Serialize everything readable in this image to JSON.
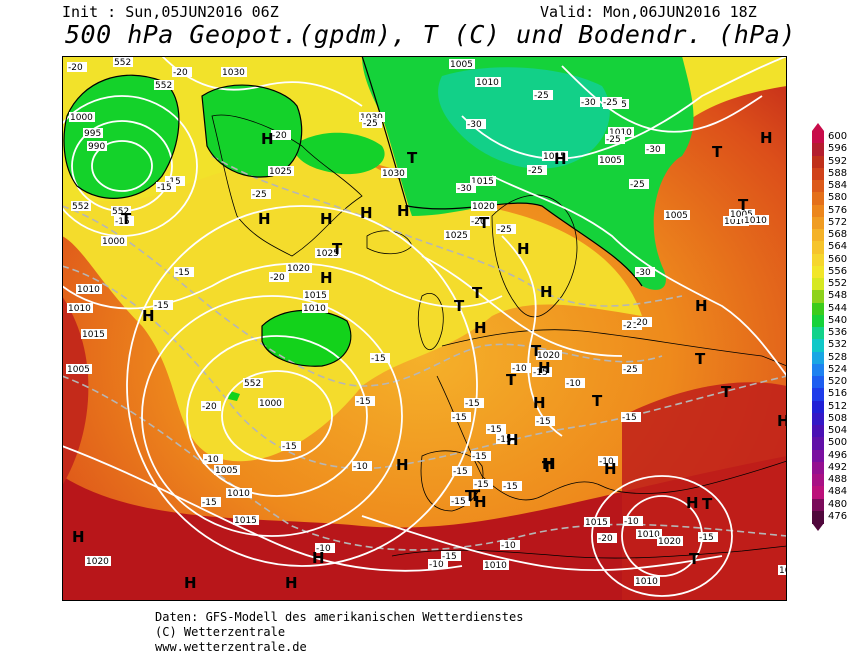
{
  "header": {
    "init": "Init : Sun,05JUN2016 06Z",
    "valid": "Valid: Mon,06JUN2016 18Z",
    "title": "500 hPa Geopot.(gpdm), T (C) und Bodendr. (hPa)"
  },
  "colors": {
    "low_green": "#13d21b",
    "mid_yellow": "#f5e82a",
    "orange": "#ef8a1c",
    "deep_red": "#b40c14",
    "isobar": "#ffffff",
    "isotherm": "#b6b6b6"
  },
  "colorbar": {
    "labels": [
      "600",
      "596",
      "592",
      "588",
      "584",
      "580",
      "576",
      "572",
      "568",
      "564",
      "560",
      "556",
      "552",
      "548",
      "544",
      "540",
      "536",
      "532",
      "528",
      "524",
      "520",
      "516",
      "512",
      "508",
      "504",
      "500",
      "496",
      "492",
      "488",
      "484",
      "480",
      "476"
    ],
    "colors": [
      "#c80c4a",
      "#b41e2e",
      "#c0301a",
      "#d0421a",
      "#dc5a1a",
      "#e4701a",
      "#ec861c",
      "#f09c22",
      "#f4b228",
      "#f6c42c",
      "#f6d62e",
      "#f2e62a",
      "#d6e822",
      "#8ed21c",
      "#3ccc1c",
      "#16d23a",
      "#12d28a",
      "#10c8c8",
      "#1aa6e4",
      "#1e82f0",
      "#1e5ef0",
      "#1e3cea",
      "#2020d6",
      "#3418c6",
      "#4a10b4",
      "#6010a8",
      "#7a10a0",
      "#941090",
      "#a81084",
      "#bc107a",
      "#7a0a5a",
      "#50083c"
    ]
  },
  "map": {
    "pressure_labels": [
      "552",
      "552",
      "1030",
      "1000",
      "995",
      "990",
      "552",
      "1030",
      "1025",
      "1005",
      "1010",
      "1005",
      "1010",
      "1015",
      "1015",
      "1020",
      "1025",
      "1025",
      "1020",
      "1015",
      "1010",
      "1005",
      "1010",
      "1005",
      "1000",
      "1010",
      "1015",
      "552",
      "1000",
      "1005",
      "1010",
      "1015",
      "1020",
      "1020",
      "1015",
      "1010",
      "1010",
      "1015",
      "1010",
      "1020",
      "1010",
      "1010",
      "1010",
      "1005",
      "1010",
      "1005",
      "552",
      "1030"
    ],
    "temperature_labels": [
      "-20",
      "-20",
      "-15",
      "-15",
      "-15",
      "-25",
      "-20",
      "-25",
      "-30",
      "-25",
      "-30",
      "-25",
      "-30",
      "-25",
      "-30",
      "-25",
      "-25",
      "-20",
      "-25",
      "-30",
      "-15",
      "-15",
      "-20",
      "-15",
      "-20",
      "-25",
      "-20",
      "-20",
      "-15",
      "-15",
      "-15",
      "-15",
      "-15",
      "-15",
      "-15",
      "-15",
      "-15",
      "-15",
      "-15",
      "-15",
      "-10",
      "-10",
      "-15",
      "-15",
      "-10",
      "-10",
      "-10",
      "-10",
      "-10",
      "-10",
      "-10",
      "-15",
      "-20",
      "-15",
      "-15"
    ],
    "pressure_systems": [
      "H",
      "T",
      "H",
      "H",
      "H",
      "H",
      "T",
      "T",
      "H",
      "H",
      "H",
      "T",
      "T",
      "H",
      "T",
      "H",
      "T",
      "H",
      "H",
      "H",
      "T",
      "T",
      "T",
      "T",
      "T",
      "H",
      "T",
      "H",
      "H",
      "H",
      "T",
      "H",
      "T",
      "H",
      "H",
      "H",
      "T",
      "H",
      "H",
      "H",
      "H",
      "T",
      "H",
      "T",
      "H"
    ]
  },
  "footer": {
    "line1": "Daten: GFS-Modell des amerikanischen Wetterdienstes",
    "line2": "(C) Wetterzentrale",
    "line3": "www.wetterzentrale.de"
  }
}
